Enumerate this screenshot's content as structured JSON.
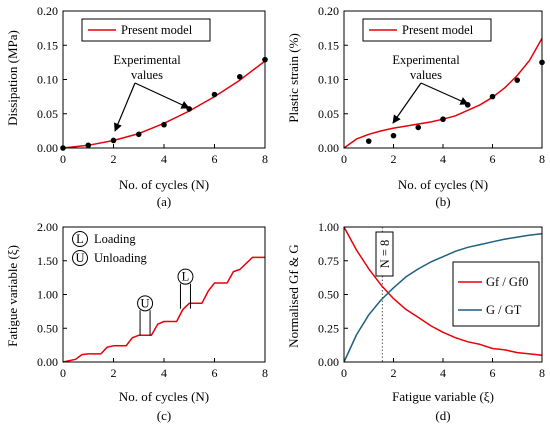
{
  "chart_data": [
    {
      "type": "line",
      "caption": "(a)",
      "xlabel": "No. of cycles (N)",
      "ylabel": "Dissipation (MPa)",
      "xlim": [
        0,
        8
      ],
      "ylim": [
        0,
        0.2
      ],
      "xticks": [
        0,
        2,
        4,
        6,
        8
      ],
      "yticks": [
        0,
        0.05,
        0.1,
        0.15,
        0.2
      ],
      "ytick_labels": [
        "0.00",
        "0.05",
        "0.10",
        "0.15",
        "0.20"
      ],
      "legend": {
        "position": "top-left",
        "entries": [
          "Present model"
        ]
      },
      "annotation": [
        "Experimental",
        "values"
      ],
      "series": [
        {
          "name": "Present model",
          "kind": "line",
          "color": "#e8000b",
          "x": [
            0,
            1,
            2,
            3,
            4,
            5,
            6,
            7,
            8
          ],
          "y": [
            0,
            0.004,
            0.011,
            0.021,
            0.036,
            0.054,
            0.075,
            0.099,
            0.127
          ]
        },
        {
          "kind": "points",
          "color": "#000000",
          "x": [
            0,
            1,
            2,
            3,
            4,
            5,
            6,
            7,
            8
          ],
          "y": [
            0,
            0.004,
            0.011,
            0.02,
            0.034,
            0.057,
            0.078,
            0.104,
            0.129
          ]
        }
      ]
    },
    {
      "type": "line",
      "caption": "(b)",
      "xlabel": "No. of cycles (N)",
      "ylabel": "Plastic strain (%)",
      "xlim": [
        0,
        8
      ],
      "ylim": [
        0,
        0.2
      ],
      "xticks": [
        0,
        2,
        4,
        6,
        8
      ],
      "yticks": [
        0,
        0.05,
        0.1,
        0.15,
        0.2
      ],
      "ytick_labels": [
        "0.00",
        "0.05",
        "0.10",
        "0.15",
        "0.20"
      ],
      "legend": {
        "position": "top-left",
        "entries": [
          "Present model"
        ]
      },
      "annotation": [
        "Experimental",
        "values"
      ],
      "series": [
        {
          "name": "Present model",
          "kind": "line",
          "color": "#e8000b",
          "x": [
            0,
            0.5,
            1,
            1.5,
            2,
            2.5,
            3,
            3.5,
            4,
            4.5,
            5,
            5.5,
            6,
            6.5,
            7,
            7.5,
            8
          ],
          "y": [
            0,
            0.013,
            0.02,
            0.025,
            0.029,
            0.032,
            0.035,
            0.038,
            0.042,
            0.047,
            0.055,
            0.063,
            0.074,
            0.088,
            0.106,
            0.128,
            0.16
          ]
        },
        {
          "kind": "points",
          "color": "#000000",
          "x": [
            1,
            2,
            3,
            4,
            5,
            6,
            7,
            8
          ],
          "y": [
            0.01,
            0.018,
            0.03,
            0.042,
            0.063,
            0.075,
            0.099,
            0.125
          ]
        }
      ]
    },
    {
      "type": "line",
      "caption": "(c)",
      "xlabel": "No. of cycles (N)",
      "ylabel": "Fatigue variable (ξ)",
      "xlim": [
        0,
        8
      ],
      "ylim": [
        0,
        2
      ],
      "xticks": [
        0,
        2,
        4,
        6,
        8
      ],
      "yticks": [
        0,
        0.5,
        1,
        1.5,
        2
      ],
      "ytick_labels": [
        "0.00",
        "0.50",
        "1.00",
        "1.50",
        "2.00"
      ],
      "legend": {
        "position": "top-left",
        "entries": [
          {
            "symbol": "L",
            "label": "Loading"
          },
          {
            "symbol": "U",
            "label": "Unloading"
          }
        ]
      },
      "markers": [
        {
          "symbol": "U",
          "x": 3.25,
          "y": 0.395
        },
        {
          "symbol": "L",
          "x": 4.85,
          "y": 0.79
        }
      ],
      "series": [
        {
          "kind": "line",
          "color": "#e8000b",
          "x": [
            0,
            0.5,
            0.75,
            1.0,
            1.5,
            1.75,
            2.0,
            2.5,
            2.75,
            3.0,
            3.5,
            3.75,
            4.0,
            4.5,
            4.75,
            5.0,
            5.5,
            5.75,
            6.0,
            6.5,
            6.75,
            7.0,
            7.5,
            8.0
          ],
          "y": [
            0,
            0.04,
            0.11,
            0.12,
            0.12,
            0.22,
            0.24,
            0.24,
            0.36,
            0.395,
            0.395,
            0.56,
            0.6,
            0.6,
            0.78,
            0.87,
            0.87,
            1.05,
            1.17,
            1.17,
            1.34,
            1.37,
            1.55,
            1.55
          ]
        }
      ]
    },
    {
      "type": "line",
      "caption": "(d)",
      "xlabel": "Fatigue variable (ξ)",
      "ylabel": "Normalised Gf & G",
      "xlim": [
        0,
        8
      ],
      "ylim": [
        0,
        1
      ],
      "xticks": [
        0,
        2,
        4,
        6,
        8
      ],
      "yticks": [
        0,
        0.25,
        0.5,
        0.75,
        1
      ],
      "ytick_labels": [
        "0.00",
        "0.25",
        "0.50",
        "0.75",
        "1.00"
      ],
      "legend": {
        "position": "right",
        "entries": [
          "Gf / Gf0",
          "G / GT"
        ]
      },
      "vline": {
        "x": 1.55,
        "label": "N = 8"
      },
      "series": [
        {
          "name": "Gf / Gf0",
          "kind": "line",
          "color": "#e8000b",
          "x": [
            0,
            0.5,
            1,
            1.5,
            2,
            2.5,
            3,
            3.5,
            4,
            4.5,
            5,
            5.5,
            6,
            6.5,
            7,
            7.5,
            8
          ],
          "y": [
            1,
            0.83,
            0.69,
            0.57,
            0.47,
            0.39,
            0.33,
            0.27,
            0.22,
            0.18,
            0.15,
            0.13,
            0.1,
            0.09,
            0.07,
            0.06,
            0.05
          ]
        },
        {
          "name": "G / GT",
          "kind": "line",
          "color": "#1f5f7f",
          "x": [
            0,
            0.5,
            1,
            1.5,
            2,
            2.5,
            3,
            3.5,
            4,
            4.5,
            5,
            5.5,
            6,
            6.5,
            7,
            7.5,
            8
          ],
          "y": [
            0,
            0.2,
            0.35,
            0.46,
            0.55,
            0.63,
            0.69,
            0.74,
            0.78,
            0.82,
            0.85,
            0.87,
            0.89,
            0.91,
            0.925,
            0.94,
            0.95
          ]
        }
      ]
    }
  ]
}
